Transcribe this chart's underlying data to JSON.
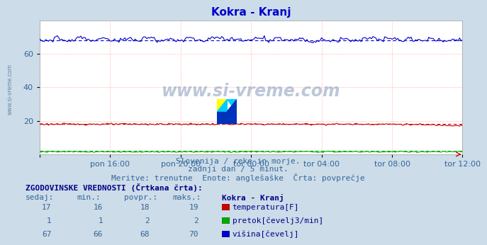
{
  "title": "Kokra - Kranj",
  "title_color": "#0000cc",
  "bg_color": "#ccdce8",
  "plot_bg_color": "#ffffff",
  "watermark": "www.si-vreme.com",
  "subtitle_lines": [
    "Slovenija / reke in morje.",
    "zadnji dan / 5 minut.",
    "Meritve: trenutne  Enote: anglešaške  Črta: povprečje"
  ],
  "xlim": [
    0,
    288
  ],
  "ylim": [
    0,
    80
  ],
  "yticks": [
    20,
    40,
    60
  ],
  "xtick_labels": [
    "pon 16:00",
    "pon 20:00",
    "tor 00:00",
    "tor 04:00",
    "tor 08:00",
    "tor 12:00"
  ],
  "xtick_positions": [
    0,
    48,
    96,
    144,
    192,
    240,
    288
  ],
  "grid_color": "#ffaaaa",
  "temp_color": "#cc0000",
  "pretok_color": "#00aa00",
  "visina_color": "#0000cc",
  "temp_avg": 18,
  "pretok_avg": 2,
  "visina_avg": 68,
  "table_header": "ZGODOVINSKE VREDNOSTI (Črtkana črta):",
  "col_headers": [
    "sedaj:",
    "min.:",
    "povpr.:",
    "maks.:",
    "Kokra - Kranj"
  ],
  "rows": [
    {
      "sedaj": 17,
      "min": 16,
      "povpr": 18,
      "maks": 19,
      "label": "temperatura[F]",
      "color": "#cc0000"
    },
    {
      "sedaj": 1,
      "min": 1,
      "povpr": 2,
      "maks": 2,
      "label": "pretok[čevelj3/min]",
      "color": "#00aa00"
    },
    {
      "sedaj": 67,
      "min": 66,
      "povpr": 68,
      "maks": 70,
      "label": "višina[čevelj]",
      "color": "#0000cc"
    }
  ],
  "tick_color": "#336699",
  "tick_fontsize": 8,
  "left_label": "www.si-vreme.com",
  "left_label_color": "#6688aa"
}
